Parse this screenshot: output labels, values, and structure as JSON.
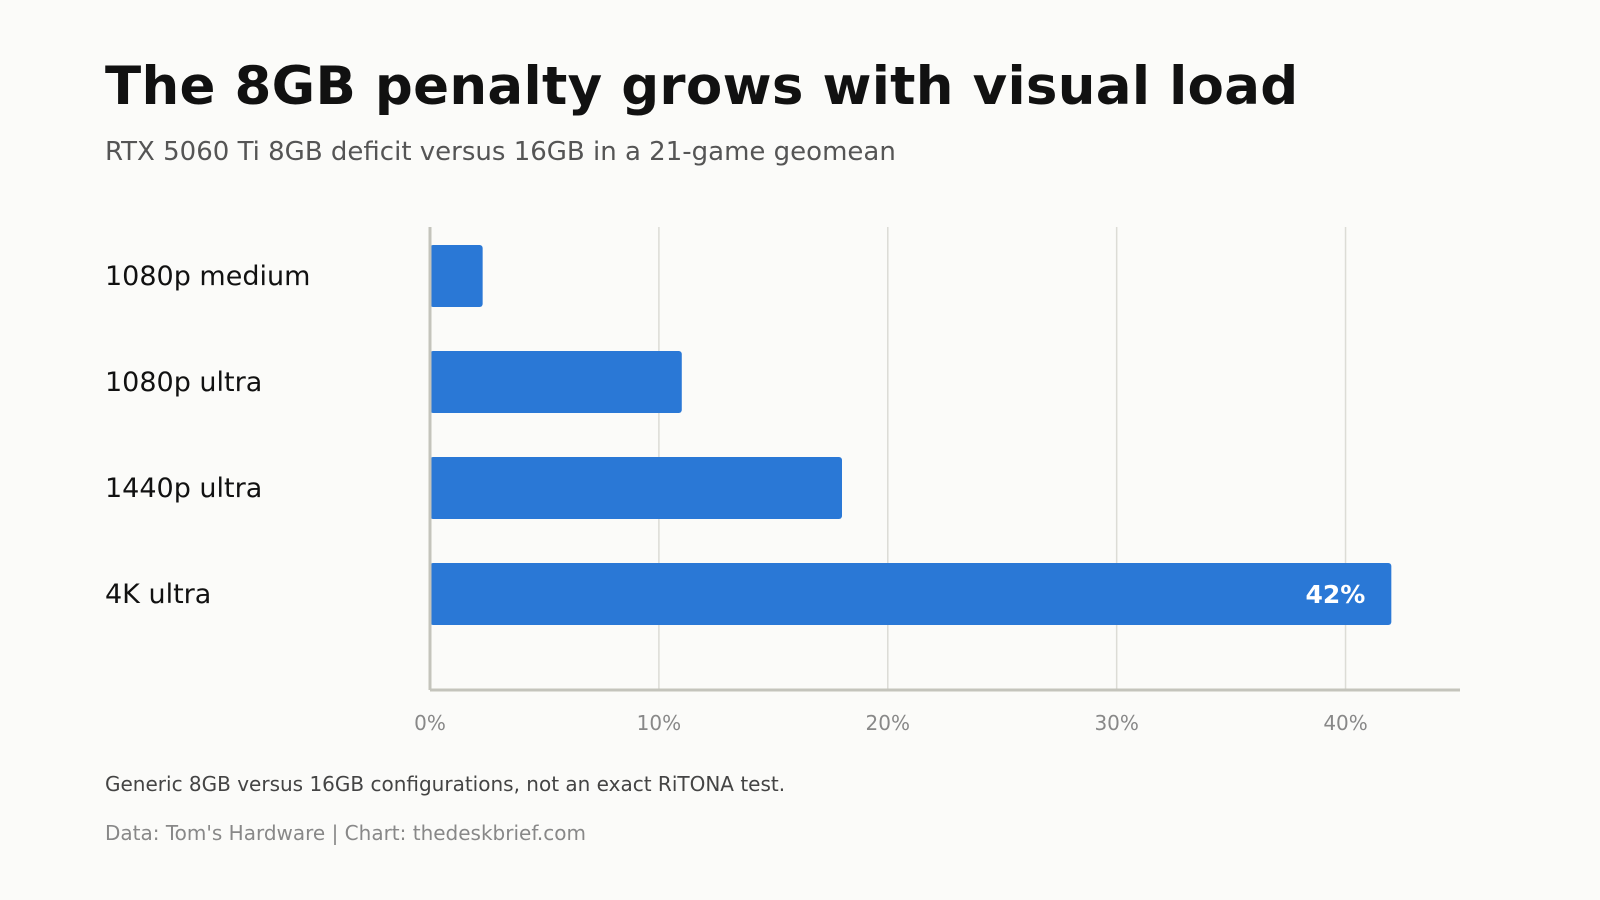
{
  "title": "The 8GB penalty grows with visual load",
  "subtitle": "RTX 5060 Ti 8GB deficit versus 16GB in a 21-game geomean",
  "note": "Generic 8GB versus 16GB configurations, not an exact RiTONA test.",
  "source": "Data: Tom's Hardware | Chart: thedeskbrief.com",
  "colors": {
    "bar": "#2a78d6",
    "grid": "#dcdcd6",
    "axis": "#c4c4bc",
    "tick_text": "#888888",
    "category_text": "#111111",
    "bar_label_text": "#ffffff"
  },
  "chart_data": {
    "type": "bar",
    "orientation": "horizontal",
    "categories": [
      "1080p medium",
      "1080p ultra",
      "1440p ultra",
      "4K ultra"
    ],
    "values": [
      2.3,
      11,
      18,
      42
    ],
    "xlim": [
      0,
      45
    ],
    "xticks": [
      0,
      10,
      20,
      30,
      40
    ],
    "xtick_labels": [
      "0%",
      "10%",
      "20%",
      "30%",
      "40%"
    ],
    "data_labels": [
      {
        "category": "4K ultra",
        "text": "42%"
      }
    ],
    "grid": "vertical",
    "unit": "%"
  }
}
